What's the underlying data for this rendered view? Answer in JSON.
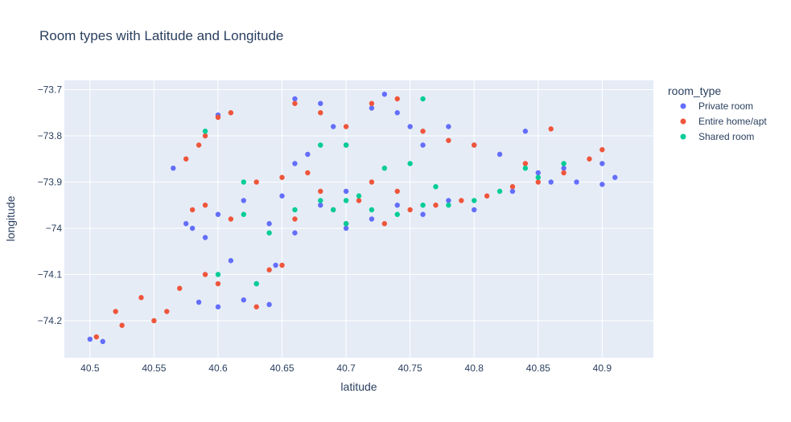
{
  "chart_data": {
    "type": "scatter",
    "title": "Room types with Latitude and Longitude",
    "xlabel": "latitude",
    "ylabel": "longitude",
    "xlim": [
      40.48,
      40.94
    ],
    "ylim": [
      -74.28,
      -73.68
    ],
    "xticks": [
      40.5,
      40.55,
      40.6,
      40.65,
      40.7,
      40.75,
      40.8,
      40.85,
      40.9
    ],
    "xtick_labels": [
      "40.5",
      "40.55",
      "40.6",
      "40.65",
      "40.7",
      "40.75",
      "40.8",
      "40.85",
      "40.9"
    ],
    "yticks": [
      -73.7,
      -73.8,
      -73.9,
      -74,
      -74.1,
      -74.2
    ],
    "ytick_labels": [
      "−73.7",
      "−73.8",
      "−73.9",
      "−74",
      "−74.1",
      "−74.2"
    ],
    "grid": true,
    "legend_title": "room_type",
    "legend_position": "right",
    "series": [
      {
        "name": "Private room",
        "color": "#636efa",
        "points": [
          [
            40.5,
            -74.24
          ],
          [
            40.51,
            -74.245
          ],
          [
            40.565,
            -73.87
          ],
          [
            40.585,
            -74.16
          ],
          [
            40.6,
            -74.17
          ],
          [
            40.6,
            -73.755
          ],
          [
            40.62,
            -74.155
          ],
          [
            40.64,
            -74.165
          ],
          [
            40.58,
            -74.0
          ],
          [
            40.59,
            -74.02
          ],
          [
            40.61,
            -74.07
          ],
          [
            40.63,
            -74.12
          ],
          [
            40.645,
            -74.08
          ],
          [
            40.66,
            -73.72
          ],
          [
            40.68,
            -73.73
          ],
          [
            40.69,
            -73.78
          ],
          [
            40.67,
            -73.84
          ],
          [
            40.66,
            -73.86
          ],
          [
            40.7,
            -73.82
          ],
          [
            40.72,
            -73.74
          ],
          [
            40.73,
            -73.71
          ],
          [
            40.74,
            -73.75
          ],
          [
            40.75,
            -73.78
          ],
          [
            40.76,
            -73.82
          ],
          [
            40.78,
            -73.78
          ],
          [
            40.8,
            -73.82
          ],
          [
            40.82,
            -73.84
          ],
          [
            40.84,
            -73.79
          ],
          [
            40.85,
            -73.88
          ],
          [
            40.87,
            -73.87
          ],
          [
            40.9,
            -73.86
          ],
          [
            40.91,
            -73.89
          ],
          [
            40.9,
            -73.905
          ],
          [
            40.88,
            -73.9
          ],
          [
            40.83,
            -73.92
          ],
          [
            40.78,
            -73.94
          ],
          [
            40.74,
            -73.95
          ],
          [
            40.7,
            -73.92
          ],
          [
            40.68,
            -73.95
          ],
          [
            40.65,
            -73.93
          ],
          [
            40.62,
            -73.94
          ],
          [
            40.6,
            -73.97
          ],
          [
            40.64,
            -73.99
          ],
          [
            40.66,
            -74.01
          ],
          [
            40.7,
            -74.0
          ],
          [
            40.72,
            -73.98
          ],
          [
            40.76,
            -73.97
          ],
          [
            40.8,
            -73.96
          ],
          [
            40.86,
            -73.9
          ],
          [
            40.575,
            -73.99
          ]
        ]
      },
      {
        "name": "Entire home/apt",
        "color": "#ef553b",
        "points": [
          [
            40.505,
            -74.235
          ],
          [
            40.52,
            -74.18
          ],
          [
            40.525,
            -74.21
          ],
          [
            40.54,
            -74.15
          ],
          [
            40.55,
            -74.2
          ],
          [
            40.56,
            -74.18
          ],
          [
            40.57,
            -74.13
          ],
          [
            40.59,
            -74.1
          ],
          [
            40.6,
            -74.12
          ],
          [
            40.63,
            -74.17
          ],
          [
            40.64,
            -74.09
          ],
          [
            40.65,
            -74.08
          ],
          [
            40.6,
            -73.76
          ],
          [
            40.61,
            -73.75
          ],
          [
            40.59,
            -73.8
          ],
          [
            40.585,
            -73.82
          ],
          [
            40.575,
            -73.85
          ],
          [
            40.58,
            -73.96
          ],
          [
            40.59,
            -73.95
          ],
          [
            40.61,
            -73.98
          ],
          [
            40.63,
            -73.9
          ],
          [
            40.65,
            -73.89
          ],
          [
            40.67,
            -73.88
          ],
          [
            40.68,
            -73.92
          ],
          [
            40.69,
            -73.96
          ],
          [
            40.7,
            -73.99
          ],
          [
            40.71,
            -73.94
          ],
          [
            40.72,
            -73.9
          ],
          [
            40.74,
            -73.92
          ],
          [
            40.75,
            -73.96
          ],
          [
            40.77,
            -73.95
          ],
          [
            40.79,
            -73.94
          ],
          [
            40.81,
            -73.93
          ],
          [
            40.83,
            -73.91
          ],
          [
            40.85,
            -73.9
          ],
          [
            40.87,
            -73.88
          ],
          [
            40.89,
            -73.85
          ],
          [
            40.9,
            -73.83
          ],
          [
            40.66,
            -73.73
          ],
          [
            40.68,
            -73.75
          ],
          [
            40.7,
            -73.78
          ],
          [
            40.72,
            -73.73
          ],
          [
            40.74,
            -73.72
          ],
          [
            40.76,
            -73.79
          ],
          [
            40.78,
            -73.81
          ],
          [
            40.8,
            -73.82
          ],
          [
            40.84,
            -73.86
          ],
          [
            40.86,
            -73.785
          ],
          [
            40.66,
            -73.98
          ],
          [
            40.73,
            -73.99
          ]
        ]
      },
      {
        "name": "Shared room",
        "color": "#00cc96",
        "points": [
          [
            40.59,
            -73.79
          ],
          [
            40.6,
            -74.1
          ],
          [
            40.63,
            -74.12
          ],
          [
            40.62,
            -73.97
          ],
          [
            40.64,
            -74.01
          ],
          [
            40.66,
            -73.96
          ],
          [
            40.68,
            -73.94
          ],
          [
            40.69,
            -73.96
          ],
          [
            40.7,
            -73.99
          ],
          [
            40.7,
            -73.94
          ],
          [
            40.71,
            -73.93
          ],
          [
            40.72,
            -73.96
          ],
          [
            40.73,
            -73.87
          ],
          [
            40.74,
            -73.97
          ],
          [
            40.75,
            -73.86
          ],
          [
            40.76,
            -73.95
          ],
          [
            40.77,
            -73.91
          ],
          [
            40.78,
            -73.95
          ],
          [
            40.8,
            -73.94
          ],
          [
            40.82,
            -73.92
          ],
          [
            40.84,
            -73.87
          ],
          [
            40.85,
            -73.89
          ],
          [
            40.87,
            -73.86
          ],
          [
            40.68,
            -73.82
          ],
          [
            40.7,
            -73.82
          ],
          [
            40.76,
            -73.72
          ],
          [
            40.62,
            -73.9
          ]
        ]
      }
    ]
  }
}
